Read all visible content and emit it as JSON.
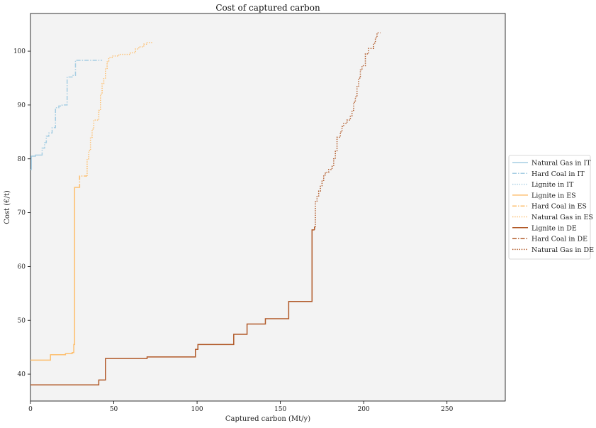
{
  "chart_data": {
    "type": "line",
    "step": true,
    "title": "Cost of captured carbon",
    "xlabel": "Captured carbon (Mt/y)",
    "ylabel": "Cost (€/t)",
    "xlim": [
      0,
      285
    ],
    "ylim": [
      35,
      107
    ],
    "xticks": [
      0,
      50,
      100,
      150,
      200,
      250
    ],
    "yticks": [
      40,
      50,
      60,
      70,
      80,
      90,
      100
    ],
    "grid": false,
    "legend_position": "right",
    "plot_background": "#f3f3f3",
    "series": [
      {
        "name": "Natural Gas in IT",
        "color": "#a6cee3",
        "dash": "solid",
        "points": [
          [
            0,
            78
          ],
          [
            0.5,
            78
          ],
          [
            0.5,
            80.5
          ],
          [
            3,
            80.5
          ],
          [
            3,
            80.7
          ],
          [
            6,
            80.7
          ]
        ]
      },
      {
        "name": "Hard Coal in IT",
        "color": "#a6cee3",
        "dash": "dashdot",
        "points": [
          [
            6,
            80.7
          ],
          [
            7,
            80.7
          ],
          [
            7,
            82
          ],
          [
            8.5,
            82
          ],
          [
            8.5,
            83
          ],
          [
            9.5,
            83
          ],
          [
            9.5,
            84.2
          ],
          [
            11,
            84.2
          ],
          [
            11,
            84.8
          ],
          [
            13,
            84.8
          ],
          [
            13,
            85.8
          ],
          [
            15,
            85.8
          ],
          [
            15,
            89.5
          ],
          [
            17,
            89.5
          ],
          [
            17,
            89.8
          ],
          [
            19,
            89.8
          ],
          [
            19,
            90
          ],
          [
            22,
            90
          ],
          [
            22,
            95.2
          ],
          [
            25,
            95.2
          ],
          [
            25,
            95.5
          ],
          [
            27,
            95.5
          ],
          [
            27,
            98.3
          ],
          [
            43,
            98.3
          ]
        ]
      },
      {
        "name": "Lignite in IT",
        "color": "#a6cee3",
        "dash": "dotted",
        "points": []
      },
      {
        "name": "Lignite in ES",
        "color": "#fdbf6f",
        "dash": "solid",
        "points": [
          [
            0,
            42.6
          ],
          [
            12,
            42.6
          ],
          [
            12,
            43.6
          ],
          [
            21,
            43.6
          ],
          [
            21,
            43.8
          ],
          [
            25,
            43.8
          ],
          [
            25,
            44
          ],
          [
            26,
            44
          ],
          [
            26,
            45.5
          ],
          [
            26.5,
            45.5
          ],
          [
            26.5,
            74.7
          ],
          [
            29,
            74.7
          ]
        ]
      },
      {
        "name": "Hard Coal in ES",
        "color": "#fdbf6f",
        "dash": "dashdot",
        "points": [
          [
            29,
            74.7
          ],
          [
            29.5,
            74.7
          ],
          [
            29.5,
            76.8
          ],
          [
            34,
            76.8
          ]
        ]
      },
      {
        "name": "Natural Gas in ES",
        "color": "#fdbf6f",
        "dash": "dotted",
        "points": [
          [
            34,
            76.8
          ],
          [
            34,
            80
          ],
          [
            35,
            80
          ],
          [
            35,
            81.5
          ],
          [
            36,
            81.5
          ],
          [
            36,
            84
          ],
          [
            37,
            84
          ],
          [
            37,
            85.5
          ],
          [
            38,
            85.5
          ],
          [
            38,
            87.2
          ],
          [
            41,
            87.2
          ],
          [
            41,
            89
          ],
          [
            42,
            89
          ],
          [
            42,
            92
          ],
          [
            43,
            92
          ],
          [
            43,
            94
          ],
          [
            44,
            94
          ],
          [
            44,
            95
          ],
          [
            45,
            95
          ],
          [
            45,
            96.8
          ],
          [
            46,
            96.8
          ],
          [
            46,
            98
          ],
          [
            47,
            98
          ],
          [
            47,
            98.8
          ],
          [
            49,
            98.8
          ],
          [
            49,
            99.1
          ],
          [
            53,
            99.1
          ],
          [
            53,
            99.4
          ],
          [
            60,
            99.4
          ],
          [
            60,
            99.7
          ],
          [
            63,
            99.7
          ],
          [
            63,
            100.4
          ],
          [
            65,
            100.4
          ],
          [
            65,
            100.8
          ],
          [
            68,
            100.8
          ],
          [
            68,
            101.3
          ],
          [
            70,
            101.3
          ],
          [
            70,
            101.6
          ],
          [
            73,
            101.6
          ]
        ]
      },
      {
        "name": "Lignite in DE",
        "color": "#b15928",
        "dash": "solid",
        "points": [
          [
            0,
            38
          ],
          [
            41,
            38
          ],
          [
            41,
            38.9
          ],
          [
            45,
            38.9
          ],
          [
            45,
            42.9
          ],
          [
            70,
            42.9
          ],
          [
            70,
            43.2
          ],
          [
            99,
            43.2
          ],
          [
            99,
            44.6
          ],
          [
            100.5,
            44.6
          ],
          [
            100.5,
            45.5
          ],
          [
            122,
            45.5
          ],
          [
            122,
            47.4
          ],
          [
            130,
            47.4
          ],
          [
            130,
            49.3
          ],
          [
            141,
            49.3
          ],
          [
            141,
            50.3
          ],
          [
            155,
            50.3
          ],
          [
            155,
            53.5
          ],
          [
            169,
            53.5
          ],
          [
            169,
            66.8
          ],
          [
            170.5,
            66.8
          ]
        ]
      },
      {
        "name": "Hard Coal in DE",
        "color": "#b15928",
        "dash": "dashdot",
        "points": [
          [
            170.5,
            66.8
          ],
          [
            170.5,
            67.3
          ],
          [
            171,
            67.3
          ]
        ]
      },
      {
        "name": "Natural Gas in DE",
        "color": "#b15928",
        "dash": "dotted",
        "points": [
          [
            171,
            67.3
          ],
          [
            171,
            72
          ],
          [
            172,
            72
          ],
          [
            172,
            73
          ],
          [
            173,
            73
          ],
          [
            173,
            74
          ],
          [
            174,
            74
          ],
          [
            174,
            75
          ],
          [
            175,
            75
          ],
          [
            175,
            76
          ],
          [
            176,
            76
          ],
          [
            176,
            77
          ],
          [
            177,
            77
          ],
          [
            177,
            77.5
          ],
          [
            179,
            77.5
          ],
          [
            179,
            78
          ],
          [
            181,
            78
          ],
          [
            181,
            78.6
          ],
          [
            182,
            78.6
          ],
          [
            182,
            80
          ],
          [
            183,
            80
          ],
          [
            183,
            81.5
          ],
          [
            184,
            81.5
          ],
          [
            184,
            84
          ],
          [
            186,
            84
          ],
          [
            186,
            85
          ],
          [
            187,
            85
          ],
          [
            187,
            86
          ],
          [
            188,
            86
          ],
          [
            188,
            86.6
          ],
          [
            190,
            86.6
          ],
          [
            190,
            87.2
          ],
          [
            192,
            87.2
          ],
          [
            192,
            88
          ],
          [
            193,
            88
          ],
          [
            193,
            89
          ],
          [
            194,
            89
          ],
          [
            194,
            90.5
          ],
          [
            195,
            90.5
          ],
          [
            195,
            91.5
          ],
          [
            196,
            91.5
          ],
          [
            196,
            93.5
          ],
          [
            197,
            93.5
          ],
          [
            197,
            95
          ],
          [
            198,
            95
          ],
          [
            198,
            96.5
          ],
          [
            199,
            96.5
          ],
          [
            199,
            97.3
          ],
          [
            201,
            97.3
          ],
          [
            201,
            99.5
          ],
          [
            203,
            99.5
          ],
          [
            203,
            100.5
          ],
          [
            206,
            100.5
          ],
          [
            206,
            101.5
          ],
          [
            207,
            101.5
          ],
          [
            207,
            102.5
          ],
          [
            208,
            102.5
          ],
          [
            208,
            103.4
          ],
          [
            210,
            103.4
          ]
        ]
      }
    ]
  }
}
